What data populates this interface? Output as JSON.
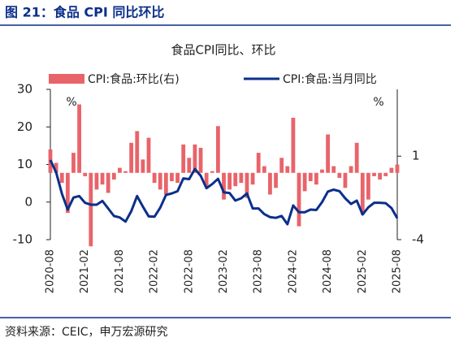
{
  "header": {
    "title": "图 21：食品 CPI 同比环比"
  },
  "chart_data": {
    "type": "bar_line",
    "title": "食品CPI同比、环比",
    "y_label": "%",
    "y2_label": "%",
    "categories": [
      "2020-08",
      null,
      null,
      null,
      null,
      null,
      "2021-02",
      null,
      null,
      null,
      null,
      null,
      "2021-08",
      null,
      null,
      null,
      null,
      null,
      "2022-02",
      null,
      null,
      null,
      null,
      null,
      "2022-08",
      null,
      null,
      null,
      null,
      null,
      "2023-02",
      null,
      null,
      null,
      null,
      null,
      "2023-08",
      null,
      null,
      null,
      null,
      null,
      "2024-02",
      null,
      null,
      null,
      null,
      null,
      "2024-08",
      null,
      null,
      null,
      null,
      null,
      "2025-02",
      null,
      null,
      null,
      null,
      null,
      "2025-08"
    ],
    "series": [
      {
        "name": "CPI:食品:环比(右)",
        "type": "bar",
        "axis": "y2",
        "color": "#e8646a",
        "values": [
          1.4,
          0.6,
          -0.6,
          -2.4,
          1.2,
          4.1,
          -0.2,
          -4.4,
          -1.0,
          -0.7,
          -1.2,
          -0.4,
          0.3,
          0.1,
          1.8,
          2.5,
          0.8,
          2.1,
          -0.6,
          -1.0,
          -1.3,
          -0.5,
          -0.6,
          1.7,
          0.9,
          1.7,
          1.5,
          -0.8,
          0.1,
          2.8,
          -1.6,
          -1.0,
          -0.8,
          -0.6,
          -1.5,
          -0.7,
          1.2,
          0.4,
          -1.3,
          -0.9,
          0.9,
          0.4,
          3.3,
          -3.2,
          -1.1,
          -0.5,
          -0.7,
          0.2,
          2.3,
          0.4,
          -0.3,
          -0.9,
          0.4,
          1.8,
          -2.5,
          -1.6,
          -0.2,
          -0.4,
          -0.2,
          0.3,
          0.5
        ]
      },
      {
        "name": "CPI:食品:当月同比",
        "type": "line",
        "color": "#0b2f8a",
        "values": [
          11.2,
          7.9,
          2.2,
          -2.0,
          1.2,
          1.6,
          -0.2,
          -0.7,
          -0.7,
          0.3,
          -1.7,
          -3.7,
          -4.1,
          -5.2,
          -2.4,
          1.6,
          -1.2,
          -3.8,
          -3.9,
          -1.5,
          1.9,
          2.3,
          2.9,
          6.3,
          6.1,
          8.8,
          7.0,
          3.7,
          4.8,
          6.2,
          2.6,
          2.4,
          0.4,
          1.0,
          2.3,
          -1.7,
          -1.7,
          -3.2,
          -4.0,
          -4.2,
          -3.7,
          -5.9,
          -0.9,
          -2.7,
          -2.7,
          -2.0,
          -2.1,
          0.0,
          2.8,
          3.3,
          2.9,
          1.0,
          -0.5,
          0.4,
          -3.3,
          -1.4,
          -0.2,
          -0.2,
          -0.3,
          -1.6,
          -4.3
        ]
      }
    ],
    "ylim": [
      -10,
      30
    ],
    "yticks": [
      -10,
      0,
      10,
      20,
      30
    ],
    "y2lim": [
      -4,
      5
    ],
    "y2ticks": [
      -4,
      1
    ],
    "legend": "top"
  },
  "footer": {
    "source": "资料来源：CEIC，申万宏源研究"
  }
}
